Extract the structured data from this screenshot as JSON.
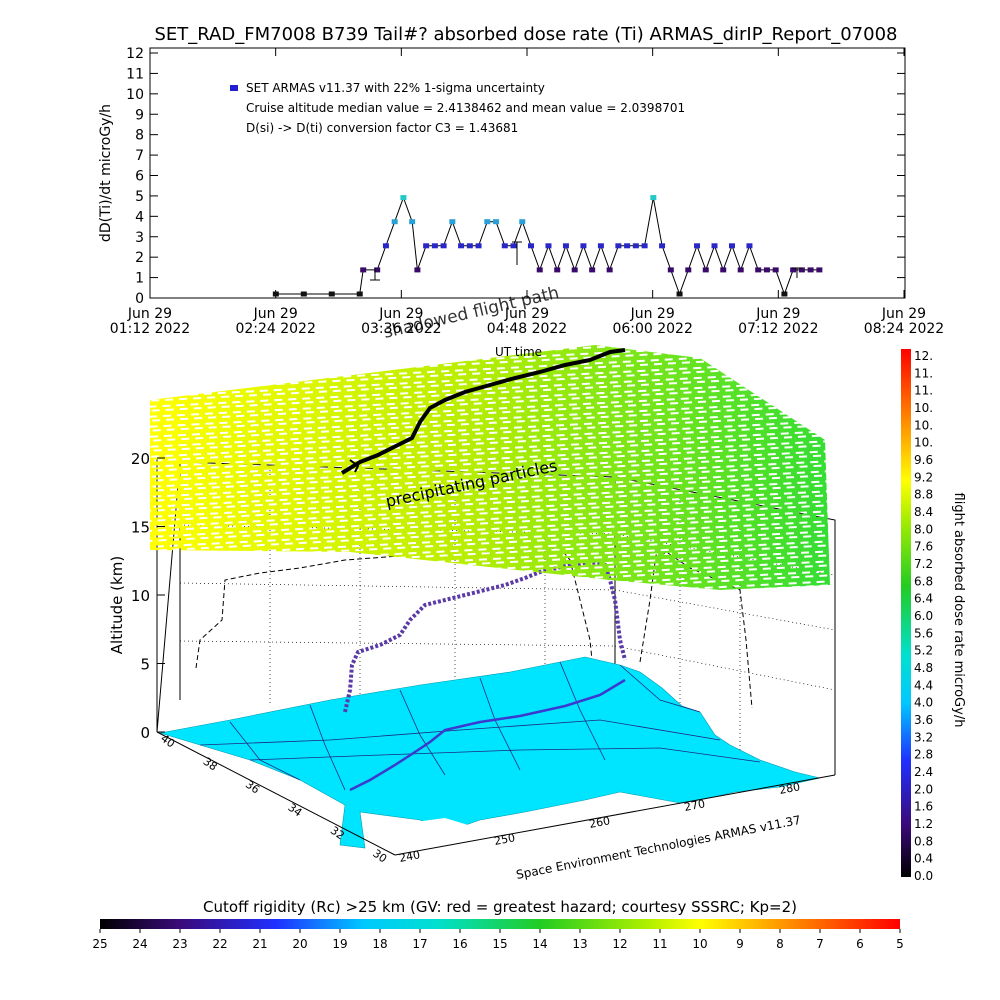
{
  "top_panel": {
    "title": "SET_RAD_FM7008  B739 Tail#? absorbed dose rate (Ti) ARMAS_dirIP_Report_07008",
    "ylabel": "dD(Ti)/dt microGy/h",
    "xlabel": "UT time",
    "legend": {
      "series_label": "SET ARMAS v11.37 with 22% 1-sigma uncertainty",
      "median_line": "Cruise altitude median value = 2.4138462 and mean value = 2.0398701",
      "conversion_line": "D(si) -> D(ti) conversion factor C3 = 1.43681"
    },
    "x_ticks": [
      {
        "l1": "Jun 29",
        "l2": "01:12 2022"
      },
      {
        "l1": "Jun 29",
        "l2": "02:24 2022"
      },
      {
        "l1": "Jun 29",
        "l2": "03:36 2022"
      },
      {
        "l1": "Jun 29",
        "l2": "04:48 2022"
      },
      {
        "l1": "Jun 29",
        "l2": "06:00 2022"
      },
      {
        "l1": "Jun 29",
        "l2": "07:12 2022"
      },
      {
        "l1": "Jun 29",
        "l2": "08:24 2022"
      }
    ],
    "y_ticks": [
      "0",
      "1",
      "2",
      "3",
      "4",
      "5",
      "6",
      "7",
      "8",
      "9",
      "10",
      "11",
      "12"
    ]
  },
  "chart_data": [
    {
      "type": "scatter",
      "title": "SET_RAD_FM7008  B739 Tail#? absorbed dose rate (Ti) ARMAS_dirIP_Report_07008",
      "xlabel": "UT time",
      "ylabel": "dD(Ti)/dt microGy/h",
      "xlim": [
        "2022-06-29 01:12",
        "2022-06-29 08:24"
      ],
      "ylim": [
        0,
        12
      ],
      "series": [
        {
          "name": "SET ARMAS v11.37 with 22% 1-sigma uncertainty",
          "x": [
            "02:24",
            "02:40",
            "02:56",
            "03:12",
            "03:14",
            "03:22",
            "03:27",
            "03:32",
            "03:37",
            "03:42",
            "03:45",
            "03:50",
            "03:55",
            "04:00",
            "04:05",
            "04:10",
            "04:15",
            "04:20",
            "04:25",
            "04:30",
            "04:35",
            "04:40",
            "04:45",
            "04:50",
            "04:55",
            "05:00",
            "05:05",
            "05:10",
            "05:15",
            "05:20",
            "05:25",
            "05:30",
            "05:35",
            "05:40",
            "05:45",
            "05:50",
            "05:55",
            "06:00",
            "06:05",
            "06:10",
            "06:15",
            "06:20",
            "06:25",
            "06:30",
            "06:35",
            "06:40",
            "06:45",
            "06:50",
            "06:55",
            "07:00",
            "07:05",
            "07:10",
            "07:15",
            "07:20",
            "07:25",
            "07:30",
            "07:35"
          ],
          "y": [
            0,
            0,
            0,
            0,
            1.2,
            1.2,
            2.4,
            3.6,
            4.8,
            3.6,
            1.2,
            2.4,
            2.4,
            2.4,
            3.6,
            2.4,
            2.4,
            2.4,
            3.6,
            3.6,
            2.4,
            2.4,
            3.6,
            2.4,
            1.2,
            2.4,
            1.2,
            2.4,
            1.2,
            2.4,
            1.2,
            2.4,
            1.2,
            2.4,
            2.4,
            2.4,
            2.4,
            4.8,
            2.4,
            1.2,
            0,
            1.2,
            2.4,
            1.2,
            2.4,
            1.2,
            2.4,
            1.2,
            2.4,
            1.2,
            1.2,
            1.2,
            0,
            1.2,
            1.2,
            1.2,
            1.2
          ]
        }
      ],
      "annotations": [
        "Cruise altitude median value = 2.4138462 and mean value = 2.0398701",
        "D(si) -> D(ti) conversion factor C3 = 1.43681"
      ]
    },
    {
      "type": "scatter",
      "title": "",
      "ylabel": "Altitude (km)",
      "zlim": [
        0,
        20
      ],
      "z_ticks": [
        "0",
        "5",
        "10",
        "15",
        "20"
      ],
      "lat_ticks": [
        "40",
        "38",
        "36",
        "34",
        "32",
        "30"
      ],
      "lon_ticks": [
        "240",
        "250",
        "260",
        "270",
        "280"
      ],
      "series": [
        {
          "name": "",
          "lon": [
            240,
            242,
            245,
            248,
            252,
            256,
            260,
            264,
            268,
            272,
            276,
            279
          ],
          "altitude_km": [
            4,
            6,
            9,
            10,
            10.5,
            10.8,
            11,
            11,
            11.3,
            11.6,
            12,
            12.3
          ]
        }
      ],
      "annotations": [
        "shadowed flight path",
        "precipitating particles"
      ]
    }
  ],
  "lower_panel": {
    "zlabel": "Altitude (km)",
    "z_ticks": [
      "0",
      "5",
      "10",
      "15",
      "20"
    ],
    "lat_ticks": [
      "40",
      "38",
      "36",
      "34",
      "32",
      "30"
    ],
    "lon_ticks": [
      "240",
      "250",
      "260",
      "270",
      "280"
    ],
    "label_shadow": "shadowed flight path",
    "label_precip": "precipitating particles",
    "credit": "Space Environment Technologies ARMAS v11.37"
  },
  "dose_colorbar": {
    "title": "flight absorbed dose rate microGy/h",
    "ticks": [
      "12.",
      "11.",
      "11.",
      "10.",
      "10.",
      "10.",
      "9.6",
      "9.2",
      "8.8",
      "8.4",
      "8.0",
      "7.6",
      "7.2",
      "6.8",
      "6.4",
      "6.0",
      "5.6",
      "5.2",
      "4.8",
      "4.4",
      "4.0",
      "3.6",
      "3.2",
      "2.8",
      "2.4",
      "2.0",
      "1.6",
      "1.2",
      "0.8",
      "0.4",
      "0.0"
    ]
  },
  "cutoff_colorbar": {
    "title": "Cutoff rigidity (Rc) >25 km (GV: red = greatest hazard; courtesy SSSRC; Kp=2)",
    "ticks": [
      "25",
      "24",
      "23",
      "22",
      "21",
      "20",
      "19",
      "18",
      "17",
      "16",
      "15",
      "14",
      "13",
      "12",
      "11",
      "10",
      "9",
      "8",
      "7",
      "6",
      "5"
    ]
  },
  "colors": {
    "ground_map": "#00e5ff",
    "flight_track": "#4030b0",
    "precip_layer_left": "#ffff00",
    "precip_layer_right": "#33dd33",
    "legend_marker": "#2020d0"
  }
}
